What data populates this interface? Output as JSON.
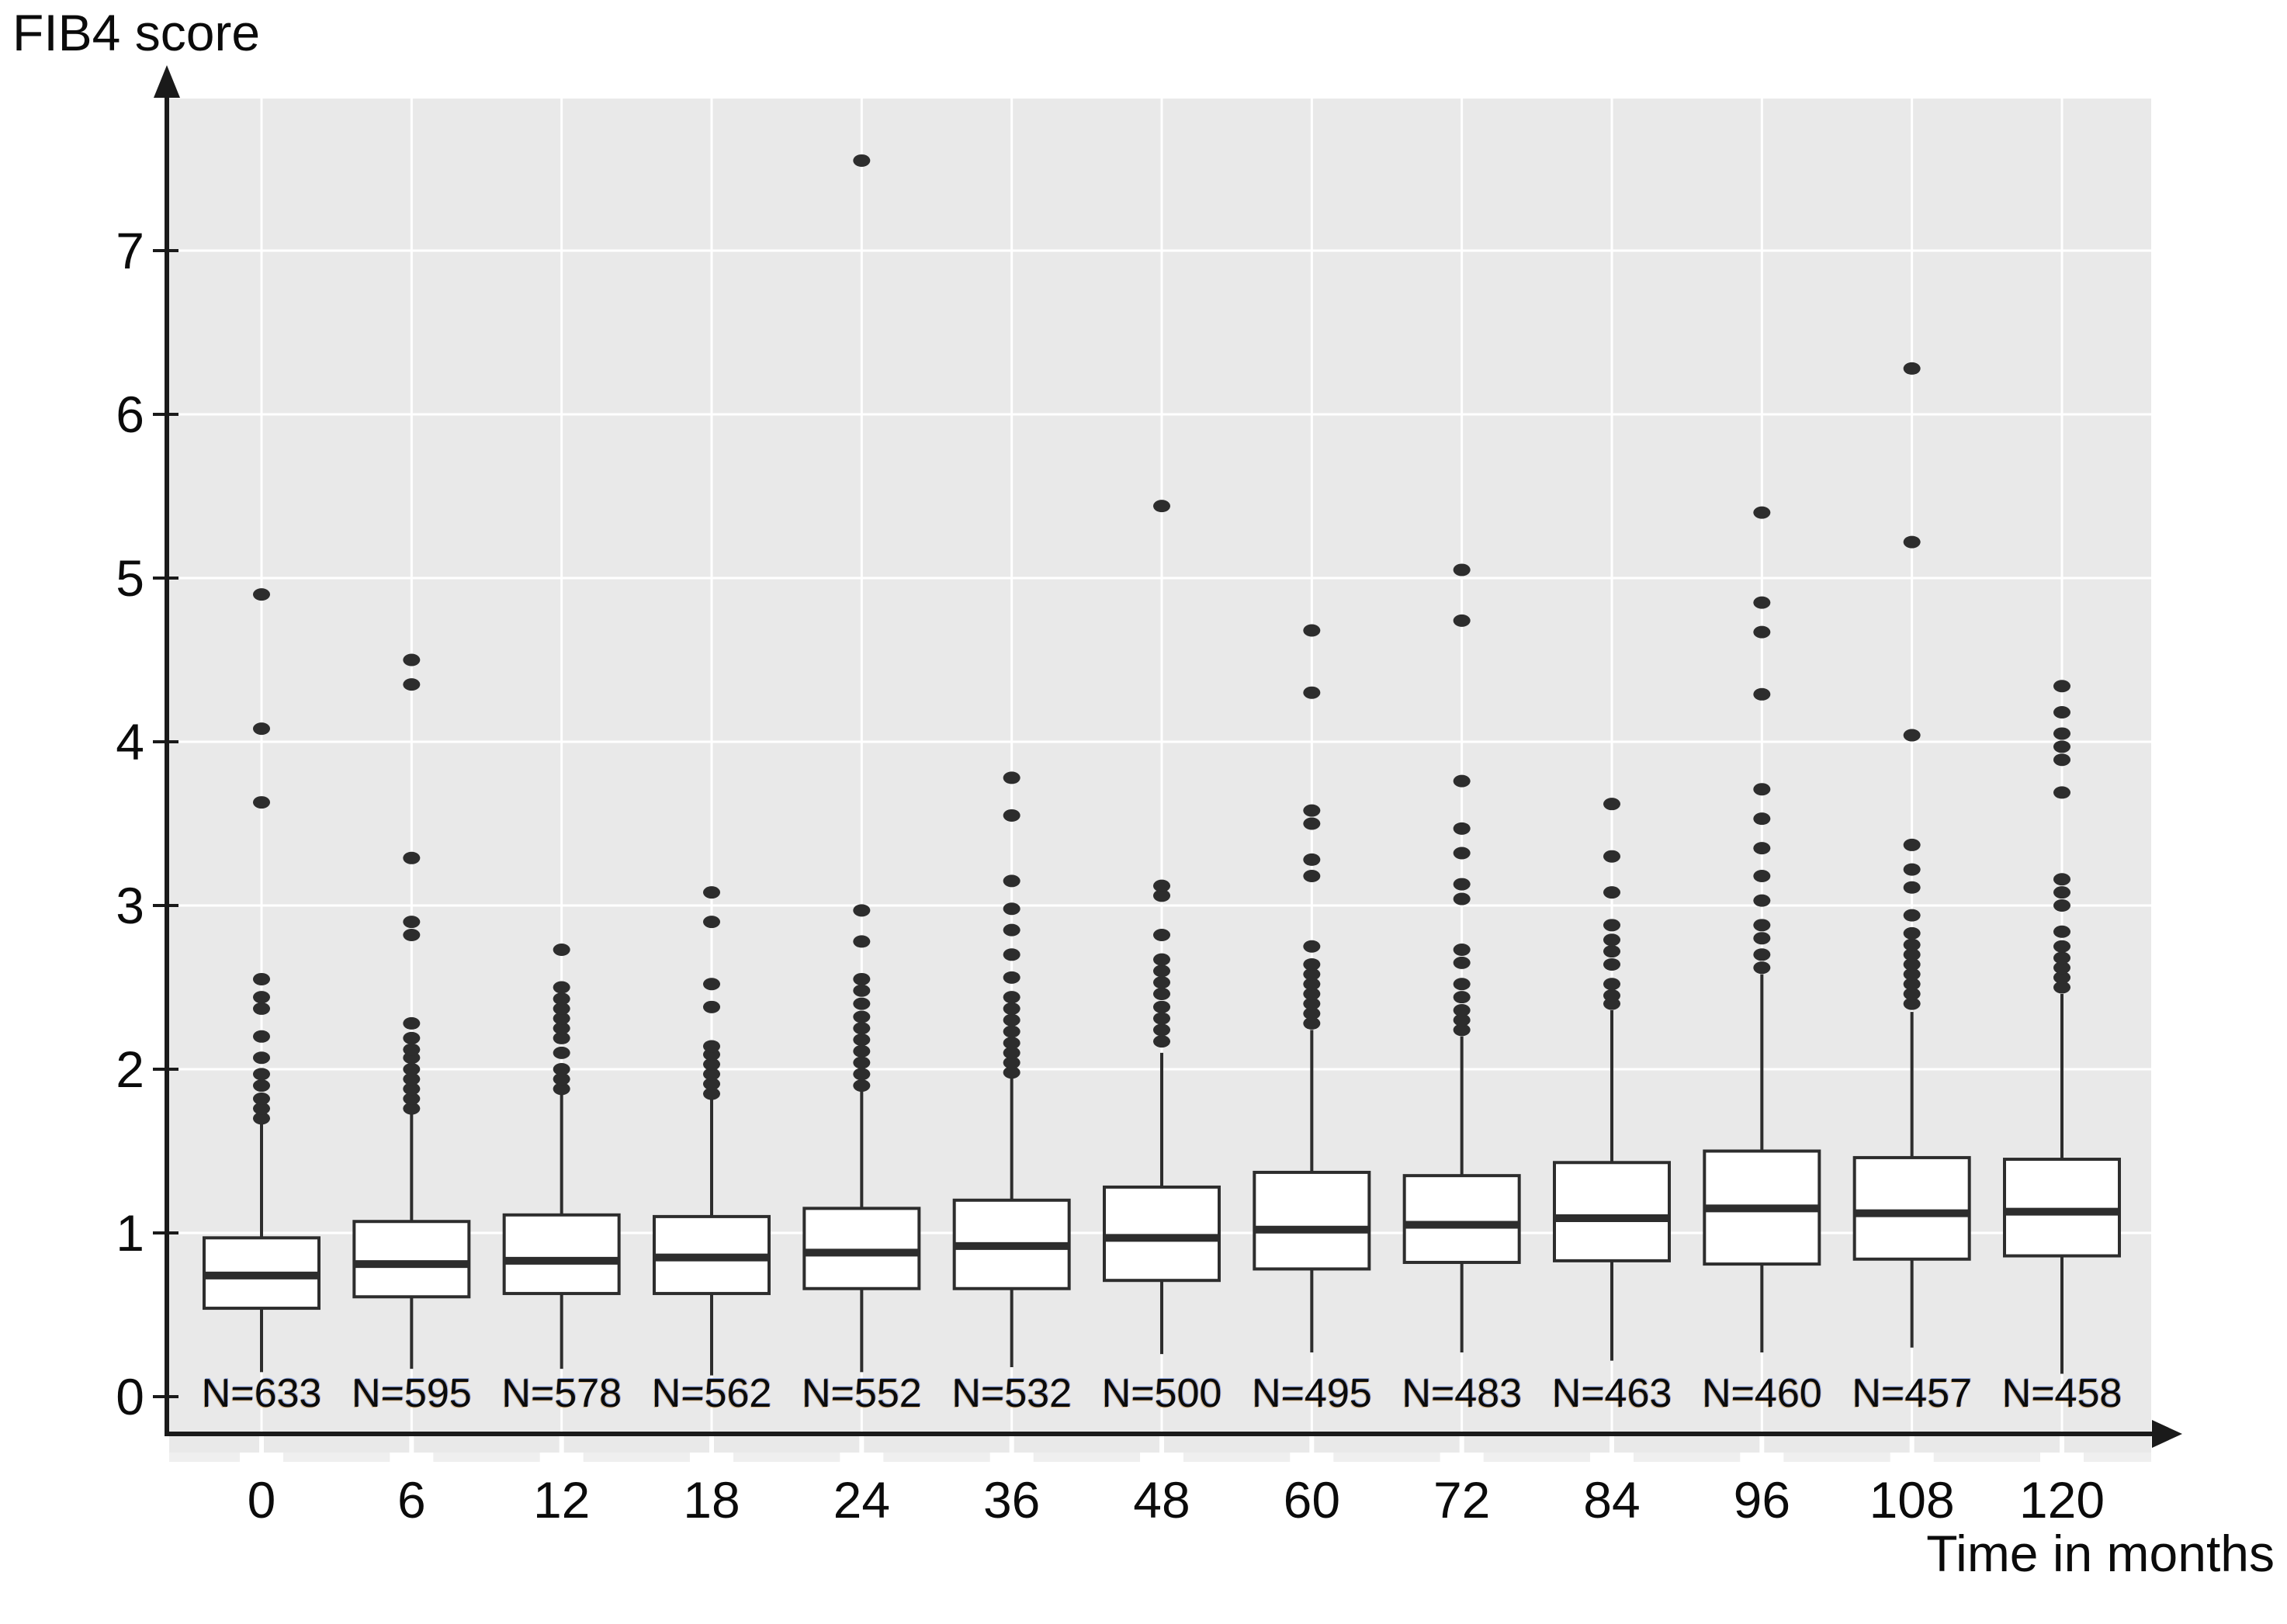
{
  "page": {
    "background": "#ffffff"
  },
  "colors": {
    "plot_bg": "#e9e9e9",
    "plot_bg_lower_tab": "#efefef",
    "gridline": "#ffffff",
    "ink": "#2d2d2d",
    "box_fill": "#ffffff",
    "axis": "#1a1a1a",
    "text": "#0b0b0b"
  },
  "chart_data": {
    "type": "boxplot",
    "title": "",
    "y_axis_label": "FIB4 score",
    "x_axis_label": "Time in months",
    "ylim": [
      0,
      7.9
    ],
    "y_ticks": [
      0,
      1,
      2,
      3,
      4,
      5,
      6,
      7
    ],
    "grid": true,
    "legend": "none",
    "categories": [
      "0",
      "6",
      "12",
      "18",
      "24",
      "36",
      "48",
      "60",
      "72",
      "84",
      "96",
      "108",
      "120"
    ],
    "series": [
      {
        "month": "0",
        "n_label": "N=633",
        "whisker_low": 0.15,
        "q1": 0.54,
        "median": 0.74,
        "q3": 0.97,
        "whisker_high": 1.68,
        "outliers": [
          1.7,
          1.76,
          1.82,
          1.9,
          1.97,
          2.07,
          2.2,
          2.37,
          2.44,
          2.55,
          3.63,
          4.08,
          4.9
        ]
      },
      {
        "month": "6",
        "n_label": "N=595",
        "whisker_low": 0.17,
        "q1": 0.61,
        "median": 0.81,
        "q3": 1.07,
        "whisker_high": 1.73,
        "outliers": [
          1.76,
          1.82,
          1.88,
          1.94,
          2.0,
          2.07,
          2.12,
          2.19,
          2.28,
          2.82,
          2.9,
          3.29,
          4.35,
          4.5
        ]
      },
      {
        "month": "12",
        "n_label": "N=578",
        "whisker_low": 0.17,
        "q1": 0.63,
        "median": 0.83,
        "q3": 1.11,
        "whisker_high": 1.85,
        "outliers": [
          1.88,
          1.94,
          2.0,
          2.1,
          2.19,
          2.25,
          2.31,
          2.37,
          2.43,
          2.5,
          2.73
        ]
      },
      {
        "month": "18",
        "n_label": "N=562",
        "whisker_low": 0.13,
        "q1": 0.63,
        "median": 0.85,
        "q3": 1.1,
        "whisker_high": 1.82,
        "outliers": [
          1.85,
          1.91,
          1.97,
          2.03,
          2.09,
          2.14,
          2.38,
          2.52,
          2.9,
          3.08
        ]
      },
      {
        "month": "24",
        "n_label": "N=552",
        "whisker_low": 0.15,
        "q1": 0.66,
        "median": 0.88,
        "q3": 1.15,
        "whisker_high": 1.87,
        "outliers": [
          1.9,
          1.97,
          2.04,
          2.11,
          2.18,
          2.25,
          2.32,
          2.4,
          2.48,
          2.55,
          2.78,
          2.97,
          7.55
        ]
      },
      {
        "month": "36",
        "n_label": "N=532",
        "whisker_low": 0.18,
        "q1": 0.66,
        "median": 0.92,
        "q3": 1.2,
        "whisker_high": 1.95,
        "outliers": [
          1.98,
          2.04,
          2.1,
          2.16,
          2.23,
          2.3,
          2.37,
          2.44,
          2.56,
          2.7,
          2.85,
          2.98,
          3.15,
          3.55,
          3.78
        ]
      },
      {
        "month": "48",
        "n_label": "N=500",
        "whisker_low": 0.26,
        "q1": 0.71,
        "median": 0.97,
        "q3": 1.28,
        "whisker_high": 2.1,
        "outliers": [
          2.17,
          2.24,
          2.31,
          2.38,
          2.46,
          2.53,
          2.6,
          2.67,
          2.82,
          3.06,
          3.12,
          5.44
        ]
      },
      {
        "month": "60",
        "n_label": "N=495",
        "whisker_low": 0.27,
        "q1": 0.78,
        "median": 1.02,
        "q3": 1.37,
        "whisker_high": 2.24,
        "outliers": [
          2.28,
          2.34,
          2.4,
          2.46,
          2.52,
          2.58,
          2.64,
          2.75,
          3.18,
          3.28,
          3.5,
          3.58,
          4.3,
          4.68
        ]
      },
      {
        "month": "72",
        "n_label": "N=483",
        "whisker_low": 0.27,
        "q1": 0.82,
        "median": 1.05,
        "q3": 1.35,
        "whisker_high": 2.2,
        "outliers": [
          2.24,
          2.3,
          2.36,
          2.44,
          2.52,
          2.65,
          2.73,
          3.04,
          3.13,
          3.32,
          3.47,
          3.76,
          4.74,
          5.05
        ]
      },
      {
        "month": "84",
        "n_label": "N=463",
        "whisker_low": 0.22,
        "q1": 0.83,
        "median": 1.09,
        "q3": 1.43,
        "whisker_high": 2.36,
        "outliers": [
          2.4,
          2.45,
          2.52,
          2.64,
          2.72,
          2.79,
          2.88,
          3.08,
          3.3,
          3.62
        ]
      },
      {
        "month": "96",
        "n_label": "N=460",
        "whisker_low": 0.27,
        "q1": 0.81,
        "median": 1.15,
        "q3": 1.5,
        "whisker_high": 2.58,
        "outliers": [
          2.62,
          2.7,
          2.8,
          2.88,
          3.03,
          3.18,
          3.35,
          3.53,
          3.71,
          4.29,
          4.67,
          4.85,
          5.4
        ]
      },
      {
        "month": "108",
        "n_label": "N=457",
        "whisker_low": 0.3,
        "q1": 0.84,
        "median": 1.12,
        "q3": 1.46,
        "whisker_high": 2.35,
        "outliers": [
          2.4,
          2.46,
          2.52,
          2.58,
          2.64,
          2.7,
          2.76,
          2.83,
          2.94,
          3.11,
          3.22,
          3.37,
          4.04,
          5.22,
          6.28
        ]
      },
      {
        "month": "120",
        "n_label": "N=458",
        "whisker_low": 0.14,
        "q1": 0.86,
        "median": 1.13,
        "q3": 1.45,
        "whisker_high": 2.46,
        "outliers": [
          2.5,
          2.56,
          2.62,
          2.68,
          2.75,
          2.84,
          3.0,
          3.08,
          3.16,
          3.69,
          3.89,
          3.97,
          4.05,
          4.18,
          4.34
        ]
      }
    ]
  }
}
